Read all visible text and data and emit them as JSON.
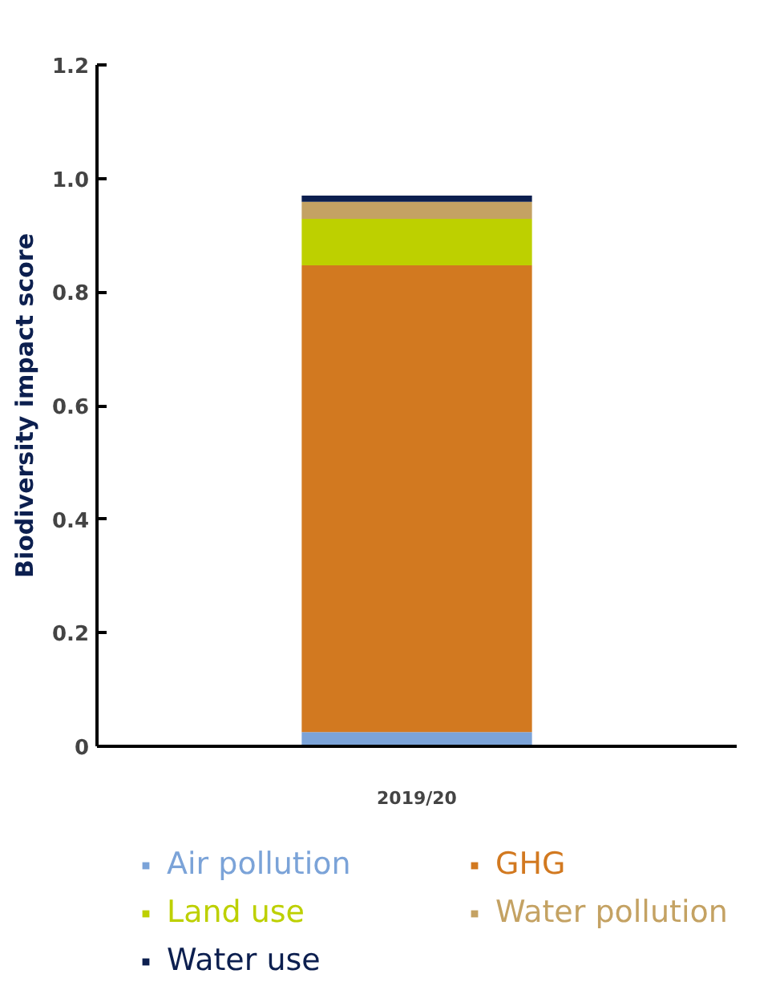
{
  "chart_data": {
    "type": "bar",
    "stacked": true,
    "categories": [
      "2019/20"
    ],
    "ylabel": "Biodiversity impact score",
    "ylim": [
      0,
      1.2
    ],
    "yticks": [
      0,
      {
        "value": 0.2,
        "label": "0.2"
      },
      {
        "value": 0.4,
        "label": "0.4"
      },
      {
        "value": 0.6,
        "label": "0.6"
      },
      {
        "value": 0.8,
        "label": "0.8"
      },
      {
        "value": 1.0,
        "label": "1.0"
      },
      {
        "value": 1.2,
        "label": "1.2"
      }
    ],
    "grid": false,
    "legend": "bottom",
    "series": [
      {
        "name": "Air pollution",
        "color": "#7ba3d8",
        "values": [
          0.025
        ]
      },
      {
        "name": "GHG",
        "color": "#d27920",
        "values": [
          0.822
        ]
      },
      {
        "name": "Land use",
        "color": "#bdd000",
        "values": [
          0.082
        ]
      },
      {
        "name": "Water pollution",
        "color": "#c4a263",
        "values": [
          0.03
        ]
      },
      {
        "name": "Water use",
        "color": "#0c1f4f",
        "values": [
          0.011
        ]
      }
    ]
  }
}
